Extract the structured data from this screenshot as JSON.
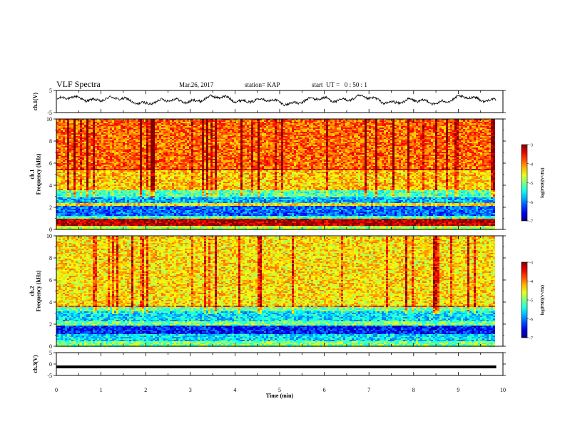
{
  "header": {
    "title": "VLF Spectra",
    "date": "Mar.26, 2017",
    "station": "station= KAP",
    "start": "start  UT =   0 : 50 : 1"
  },
  "chart_data": [
    {
      "type": "line",
      "panel": "ch1-waveform",
      "ylabel": "ch.1(V)",
      "ylim": [
        -5,
        5
      ],
      "yticks": [
        5,
        -5
      ],
      "xlim": [
        0,
        10
      ],
      "trace": "irregular waveform, mostly between -1 and 2 V",
      "color": "#000000"
    },
    {
      "type": "heatmap",
      "panel": "ch1-spectrogram",
      "ylabel": "ch.1\nFrequency (kHz)",
      "ylim": [
        0,
        10
      ],
      "yticks": [
        0,
        2,
        4,
        6,
        8,
        10
      ],
      "xlim": [
        0,
        10
      ],
      "data_extent_min": 9.8,
      "colorbar": {
        "label": "log(PSD)(V²/Hz)",
        "range": [
          -7,
          -3
        ],
        "ticks": [
          -3,
          -4,
          -5,
          -6,
          -7
        ]
      },
      "bands": [
        {
          "from": 0.0,
          "to": 0.4,
          "level": -4.8
        },
        {
          "from": 0.4,
          "to": 1.0,
          "level": -3.2
        },
        {
          "from": 1.0,
          "to": 1.3,
          "level": -5.2
        },
        {
          "from": 1.3,
          "to": 2.2,
          "level": -6.1
        },
        {
          "from": 2.2,
          "to": 2.45,
          "level": -4.4
        },
        {
          "from": 2.45,
          "to": 3.0,
          "level": -5.8
        },
        {
          "from": 3.0,
          "to": 3.6,
          "level": -5.2
        },
        {
          "from": 3.6,
          "to": 5.4,
          "level": -4.3
        },
        {
          "from": 5.4,
          "to": 5.6,
          "level": -3.4
        },
        {
          "from": 5.6,
          "to": 10.0,
          "level": -3.9
        }
      ]
    },
    {
      "type": "heatmap",
      "panel": "ch2-spectrogram",
      "ylabel": "ch.2\nFrequency (kHz)",
      "ylim": [
        0,
        10
      ],
      "yticks": [
        0,
        2,
        4,
        6,
        8,
        10
      ],
      "xlim": [
        0,
        10
      ],
      "data_extent_min": 9.8,
      "colorbar": {
        "label": "log(PSD)(V²/Hz)",
        "range": [
          -7,
          -3
        ],
        "ticks": [
          -3,
          -4,
          -5,
          -6,
          -7
        ]
      },
      "bands": [
        {
          "from": 0.0,
          "to": 0.5,
          "level": -5.0
        },
        {
          "from": 0.5,
          "to": 1.1,
          "level": -5.6
        },
        {
          "from": 1.1,
          "to": 2.0,
          "level": -6.4
        },
        {
          "from": 2.0,
          "to": 2.3,
          "level": -5.0
        },
        {
          "from": 2.3,
          "to": 3.2,
          "level": -5.6
        },
        {
          "from": 3.2,
          "to": 3.6,
          "level": -5.1
        },
        {
          "from": 3.6,
          "to": 3.8,
          "level": -3.9
        },
        {
          "from": 3.8,
          "to": 10.0,
          "level": -4.4
        }
      ]
    },
    {
      "type": "line",
      "panel": "ch3-waveform",
      "ylabel": "ch.3(V)",
      "ylim": [
        -5,
        5
      ],
      "yticks": [
        5,
        0,
        -5
      ],
      "xlim": [
        0,
        10
      ],
      "xlabel": "Time (min)",
      "xticks": [
        0,
        1,
        2,
        3,
        4,
        5,
        6,
        7,
        8,
        9,
        10
      ],
      "values_constant": 0,
      "color": "#000000"
    }
  ]
}
